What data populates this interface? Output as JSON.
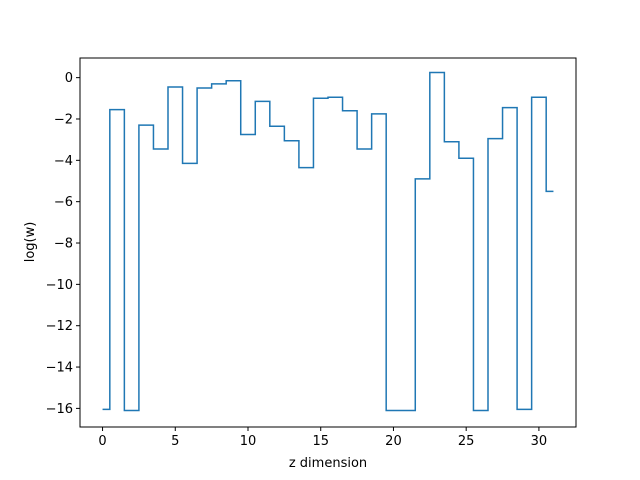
{
  "chart_data": {
    "type": "line",
    "drawstyle": "steps-mid",
    "xlabel": "z dimension",
    "ylabel": "log(w)",
    "xlim": [
      -1.55,
      32.55
    ],
    "ylim": [
      -16.9,
      0.95
    ],
    "xticks": [
      0,
      5,
      10,
      15,
      20,
      25,
      30
    ],
    "yticks": [
      0,
      -2,
      -4,
      -6,
      -8,
      -10,
      -12,
      -14,
      -16
    ],
    "grid": false,
    "line_color": "#1f77b4",
    "series": [
      {
        "x": [
          0,
          1,
          2,
          3,
          4,
          5,
          6,
          7,
          8,
          9,
          10,
          11,
          12,
          13,
          14,
          15,
          16,
          17,
          18,
          19,
          20,
          21,
          22,
          23,
          24,
          25,
          26,
          27,
          28,
          29,
          30,
          31
        ],
        "y": [
          -16.05,
          -1.55,
          -16.1,
          -2.3,
          -3.45,
          -0.45,
          -4.15,
          -0.5,
          -0.3,
          -0.15,
          -2.75,
          -1.15,
          -2.35,
          -3.05,
          -4.35,
          -1.0,
          -0.95,
          -1.6,
          -3.45,
          -1.75,
          -16.1,
          -16.1,
          -4.9,
          0.25,
          -3.1,
          -3.9,
          -16.1,
          -2.95,
          -1.45,
          -16.05,
          -0.95,
          -5.5
        ]
      }
    ]
  }
}
